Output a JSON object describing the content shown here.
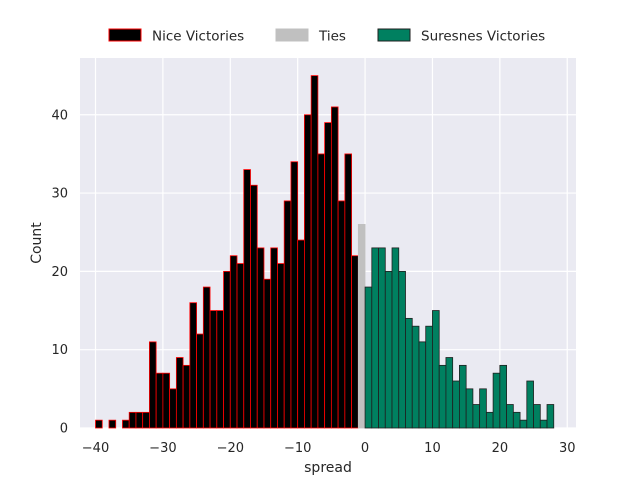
{
  "chart_data": {
    "type": "bar",
    "title": "",
    "xlabel": "spread",
    "ylabel": "Count",
    "xlim": [
      -42.3,
      31.3
    ],
    "ylim": [
      0,
      47.25
    ],
    "xticks": [
      -40,
      -30,
      -20,
      -10,
      0,
      10,
      20,
      30
    ],
    "yticks": [
      0,
      10,
      20,
      30,
      40
    ],
    "grid": true,
    "background": "#eaeaf2",
    "legend_position": "top-center",
    "series": [
      {
        "name": "Nice Victories",
        "color": "#000000",
        "edge_color": "#ff0000",
        "x": [
          -39,
          -38,
          -37,
          -36,
          -35,
          -34,
          -33,
          -32,
          -31,
          -30,
          -29,
          -28,
          -27,
          -26,
          -25,
          -24,
          -23,
          -22,
          -21,
          -20,
          -19,
          -18,
          -17,
          -16,
          -15,
          -14,
          -13,
          -12,
          -11,
          -10,
          -9,
          -8,
          -7,
          -6,
          -5,
          -4,
          -3,
          -2,
          -1
        ],
        "values": [
          1,
          0,
          1,
          0,
          1,
          2,
          2,
          2,
          11,
          7,
          7,
          5,
          9,
          8,
          16,
          12,
          18,
          15,
          15,
          20,
          22,
          21,
          33,
          31,
          23,
          19,
          23,
          21,
          29,
          34,
          24,
          40,
          45,
          35,
          39,
          41,
          29,
          35,
          22
        ]
      },
      {
        "name": "Ties",
        "color": "#c0c0c0",
        "edge_color": "#c0c0c0",
        "x": [
          0
        ],
        "values": [
          26
        ]
      },
      {
        "name": "Suresnes Victories",
        "color": "#008060",
        "edge_color": "#1f1f1f",
        "x": [
          1,
          2,
          3,
          4,
          5,
          6,
          7,
          8,
          9,
          10,
          11,
          12,
          13,
          14,
          15,
          16,
          17,
          18,
          19,
          20,
          21,
          22,
          23,
          24,
          25,
          26,
          27,
          28
        ],
        "values": [
          18,
          23,
          23,
          20,
          23,
          20,
          14,
          13,
          11,
          13,
          15,
          8,
          9,
          6,
          8,
          5,
          3,
          5,
          2,
          7,
          8,
          3,
          2,
          1,
          6,
          3,
          1,
          3
        ]
      }
    ]
  }
}
